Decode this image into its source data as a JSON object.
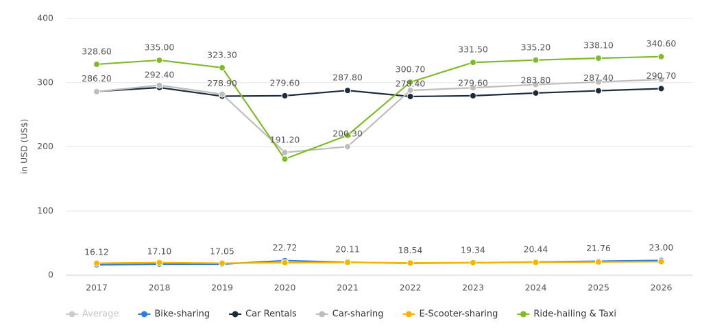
{
  "chart_data": {
    "type": "line",
    "y_label": "in USD (US$)",
    "categories": [
      "2017",
      "2018",
      "2019",
      "2020",
      "2021",
      "2022",
      "2023",
      "2024",
      "2025",
      "2026"
    ],
    "ylim": [
      0,
      400
    ],
    "yticks": [
      0,
      100,
      200,
      300,
      400
    ],
    "grid": true,
    "legend": "bottom-left",
    "series": [
      {
        "name": "Average",
        "color": "#cccccc",
        "visible": false
      },
      {
        "name": "Bike-sharing",
        "color": "#2f7ed8",
        "values": [
          16.12,
          17.1,
          17.05,
          22.72,
          20.11,
          18.54,
          19.34,
          20.44,
          21.76,
          23.0
        ],
        "value_labels": [
          "16.12",
          "17.10",
          "17.05",
          "22.72",
          "20.11",
          "18.54",
          "19.34",
          "20.44",
          "21.76",
          "23.00"
        ]
      },
      {
        "name": "Car Rentals",
        "color": "#1c2b3a",
        "values": [
          286.2,
          292.4,
          278.9,
          279.6,
          287.8,
          278.4,
          279.6,
          283.8,
          287.4,
          290.7
        ],
        "value_labels": [
          "286.20",
          "292.40",
          "278.90",
          "279.60",
          "287.80",
          "278.40",
          "279.60",
          "283.80",
          "287.40",
          "290.70"
        ]
      },
      {
        "name": "Car-sharing",
        "color": "#bdbdbd",
        "values": [
          286,
          296,
          282,
          191.2,
          200.3,
          288,
          292,
          297,
          301,
          305
        ],
        "value_labels": [
          null,
          null,
          null,
          "191.20",
          "200.30",
          null,
          null,
          null,
          null,
          null
        ]
      },
      {
        "name": "E-Scooter-sharing",
        "color": "#f5b400",
        "values": [
          18.5,
          19.5,
          18.5,
          19.5,
          20,
          19,
          19.5,
          20,
          20.5,
          21
        ]
      },
      {
        "name": "Ride-hailing & Taxi",
        "color": "#7fba2b",
        "values": [
          328.6,
          335.0,
          323.3,
          181,
          218,
          300.7,
          331.5,
          335.2,
          338.1,
          340.6
        ],
        "value_labels": [
          "328.60",
          "335.00",
          "323.30",
          null,
          null,
          "300.70",
          "331.50",
          "335.20",
          "338.10",
          "340.60"
        ]
      }
    ]
  }
}
